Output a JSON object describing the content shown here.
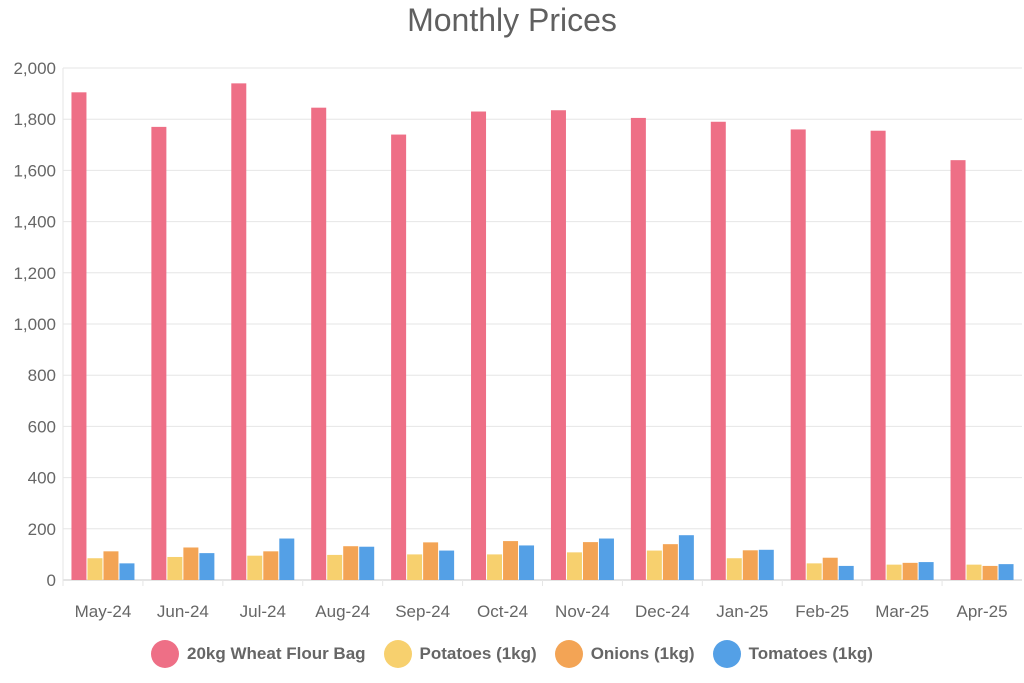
{
  "chart_data": {
    "type": "bar",
    "title": "Monthly Prices",
    "xlabel": "",
    "ylabel": "",
    "ylim": [
      0,
      2000
    ],
    "yticks": [
      "0",
      "200",
      "400",
      "600",
      "800",
      "1,000",
      "1,200",
      "1,400",
      "1,600",
      "1,800",
      "2,000"
    ],
    "grid": true,
    "legend_position": "bottom",
    "categories": [
      "May-24",
      "Jun-24",
      "Jul-24",
      "Aug-24",
      "Sep-24",
      "Oct-24",
      "Nov-24",
      "Dec-24",
      "Jan-25",
      "Feb-25",
      "Mar-25",
      "Apr-25"
    ],
    "series": [
      {
        "name": "20kg Wheat Flour Bag",
        "color": "#ee6f86",
        "values": [
          1905,
          1770,
          1940,
          1845,
          1740,
          1830,
          1835,
          1805,
          1790,
          1760,
          1755,
          1640
        ]
      },
      {
        "name": "Potatoes (1kg)",
        "color": "#f7d06e",
        "values": [
          85,
          90,
          95,
          98,
          100,
          100,
          108,
          115,
          85,
          65,
          60,
          60
        ]
      },
      {
        "name": "Onions (1kg)",
        "color": "#f3a455",
        "values": [
          112,
          127,
          112,
          132,
          147,
          152,
          148,
          140,
          116,
          87,
          67,
          55
        ]
      },
      {
        "name": "Tomatoes (1kg)",
        "color": "#54a0e6",
        "values": [
          65,
          105,
          162,
          130,
          115,
          135,
          162,
          175,
          118,
          55,
          70,
          62
        ]
      }
    ]
  }
}
